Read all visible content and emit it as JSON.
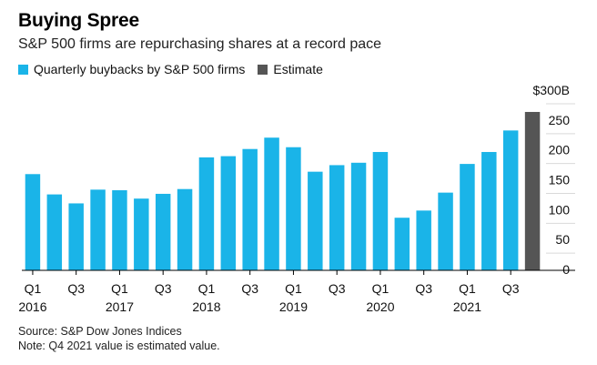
{
  "title": "Buying Spree",
  "subtitle": "S&P 500 firms are repurchasing shares at a record pace",
  "legend": [
    {
      "label": "Quarterly buybacks by S&P 500 firms",
      "color": "#1ab4e8"
    },
    {
      "label": "Estimate",
      "color": "#555555"
    }
  ],
  "footer": {
    "source": "Source: S&P Dow Jones Indices",
    "note": "Note: Q4 2021 value is estimated value."
  },
  "chart_data": {
    "type": "bar",
    "categories": [
      "Q1 2016",
      "Q2 2016",
      "Q3 2016",
      "Q4 2016",
      "Q1 2017",
      "Q2 2017",
      "Q3 2017",
      "Q4 2017",
      "Q1 2018",
      "Q2 2018",
      "Q3 2018",
      "Q4 2018",
      "Q1 2019",
      "Q2 2019",
      "Q3 2019",
      "Q4 2019",
      "Q1 2020",
      "Q2 2020",
      "Q3 2020",
      "Q4 2020",
      "Q1 2021",
      "Q2 2021",
      "Q3 2021",
      "Q4 2021"
    ],
    "series": [
      {
        "name": "Quarterly buybacks by S&P 500 firms",
        "color": "#1ab4e8",
        "values": [
          161,
          127,
          112,
          135,
          134,
          120,
          128,
          136,
          189,
          191,
          203,
          222,
          206,
          165,
          176,
          180,
          198,
          88,
          100,
          130,
          178,
          198,
          234,
          null
        ]
      },
      {
        "name": "Estimate",
        "color": "#555555",
        "values": [
          null,
          null,
          null,
          null,
          null,
          null,
          null,
          null,
          null,
          null,
          null,
          null,
          null,
          null,
          null,
          null,
          null,
          null,
          null,
          null,
          null,
          null,
          null,
          265
        ]
      }
    ],
    "tick_labels": [
      {
        "index": 0,
        "quarter": "Q1",
        "year": "2016"
      },
      {
        "index": 2,
        "quarter": "Q3",
        "year": ""
      },
      {
        "index": 4,
        "quarter": "Q1",
        "year": "2017"
      },
      {
        "index": 6,
        "quarter": "Q3",
        "year": ""
      },
      {
        "index": 8,
        "quarter": "Q1",
        "year": "2018"
      },
      {
        "index": 10,
        "quarter": "Q3",
        "year": ""
      },
      {
        "index": 12,
        "quarter": "Q1",
        "year": "2019"
      },
      {
        "index": 14,
        "quarter": "Q3",
        "year": ""
      },
      {
        "index": 16,
        "quarter": "Q1",
        "year": "2020"
      },
      {
        "index": 18,
        "quarter": "Q3",
        "year": ""
      },
      {
        "index": 20,
        "quarter": "Q1",
        "year": "2021"
      },
      {
        "index": 22,
        "quarter": "Q3",
        "year": ""
      }
    ],
    "y_ticks": [
      {
        "value": 0,
        "label": "0"
      },
      {
        "value": 50,
        "label": "50"
      },
      {
        "value": 100,
        "label": "100"
      },
      {
        "value": 150,
        "label": "150"
      },
      {
        "value": 200,
        "label": "200"
      },
      {
        "value": 250,
        "label": "250"
      },
      {
        "value": 300,
        "label": "$300B"
      }
    ],
    "ylim": [
      0,
      300
    ],
    "y_axis_side": "right",
    "grid": true
  }
}
